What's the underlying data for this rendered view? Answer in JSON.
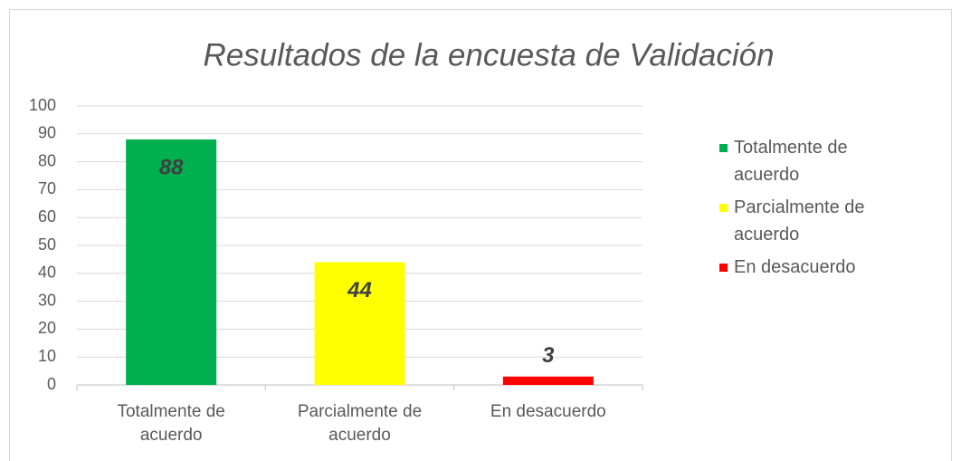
{
  "chart_data": {
    "type": "bar",
    "title": "Resultados de la encuesta de Validación",
    "categories": [
      "Totalmente de acuerdo",
      "Parcialmente de acuerdo",
      "En desacuerdo"
    ],
    "values": [
      88,
      44,
      3
    ],
    "colors": [
      "#00b050",
      "#ffff00",
      "#ff0000"
    ],
    "ylim": [
      0,
      100
    ],
    "yticks": [
      0,
      10,
      20,
      30,
      40,
      50,
      60,
      70,
      80,
      90,
      100
    ],
    "grid": true,
    "legend": "right"
  }
}
